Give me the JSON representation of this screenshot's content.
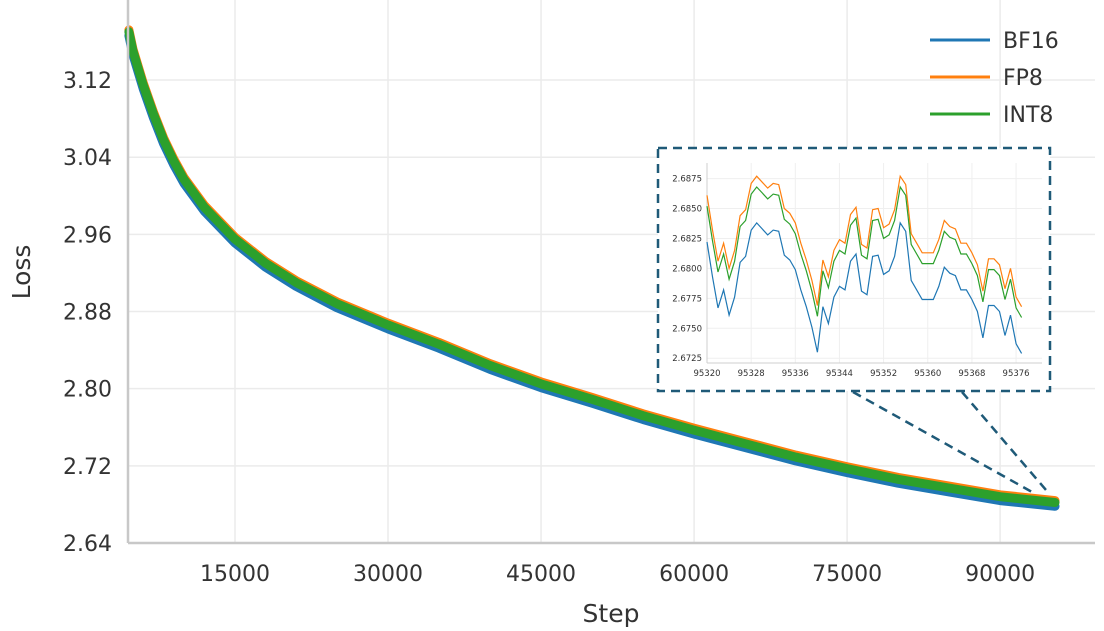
{
  "chart_data": {
    "type": "line",
    "title": "",
    "xlabel": "Step",
    "ylabel": "Loss",
    "xlim": [
      4510,
      99300
    ],
    "ylim": [
      2.64,
      3.203
    ],
    "xticks": [
      15000,
      30000,
      45000,
      60000,
      75000,
      90000
    ],
    "yticks": [
      2.64,
      2.72,
      2.8,
      2.88,
      2.96,
      3.04,
      3.12
    ],
    "ytick_labels": [
      "2.64",
      "2.72",
      "2.80",
      "2.88",
      "2.96",
      "3.04",
      "3.12"
    ],
    "grid": true,
    "legend_placement": "top-right",
    "colors": {
      "BF16": "#1f77b4",
      "FP8": "#ff7f0e",
      "INT8": "#2ca02c",
      "inset_border": "#1f5a78"
    },
    "x": [
      4600,
      5000,
      6000,
      7000,
      8000,
      9000,
      10000,
      12000,
      15000,
      18000,
      21000,
      25000,
      30000,
      35000,
      40000,
      45000,
      50000,
      55000,
      60000,
      65000,
      70000,
      75000,
      80000,
      85000,
      90000,
      95377
    ],
    "series": [
      {
        "name": "BF16",
        "values": [
          3.166,
          3.146,
          3.111,
          3.081,
          3.054,
          3.032,
          3.013,
          2.984,
          2.951,
          2.926,
          2.906,
          2.884,
          2.862,
          2.842,
          2.82,
          2.801,
          2.785,
          2.768,
          2.753,
          2.739,
          2.725,
          2.713,
          2.702,
          2.693,
          2.684,
          2.678
        ]
      },
      {
        "name": "FP8",
        "values": [
          3.172,
          3.152,
          3.117,
          3.087,
          3.06,
          3.038,
          3.019,
          2.99,
          2.957,
          2.932,
          2.912,
          2.89,
          2.868,
          2.848,
          2.826,
          2.807,
          2.791,
          2.774,
          2.759,
          2.745,
          2.731,
          2.719,
          2.708,
          2.699,
          2.69,
          2.684
        ]
      },
      {
        "name": "INT8",
        "values": [
          3.17,
          3.15,
          3.115,
          3.085,
          3.058,
          3.036,
          3.017,
          2.988,
          2.955,
          2.93,
          2.91,
          2.888,
          2.866,
          2.846,
          2.824,
          2.805,
          2.789,
          2.772,
          2.757,
          2.743,
          2.729,
          2.717,
          2.706,
          2.697,
          2.688,
          2.682
        ]
      }
    ],
    "inset": {
      "xlim": [
        95320,
        95380.7
      ],
      "ylim": [
        2.6721,
        2.6888
      ],
      "xticks": [
        95320,
        95328,
        95336,
        95344,
        95352,
        95360,
        95368,
        95376
      ],
      "yticks": [
        2.6725,
        2.675,
        2.6775,
        2.68,
        2.6825,
        2.685,
        2.6875
      ],
      "ytick_labels": [
        "2.6725",
        "2.6750",
        "2.6775",
        "2.6800",
        "2.6825",
        "2.6850",
        "2.6875"
      ],
      "x_start": 95320,
      "series": [
        {
          "name": "BF16",
          "values": [
            2.6822,
            2.6793,
            2.6767,
            2.6782,
            2.6761,
            2.6776,
            2.6805,
            2.681,
            2.6832,
            2.6838,
            2.6833,
            2.6828,
            2.6832,
            2.6831,
            2.6811,
            2.6807,
            2.6799,
            2.6782,
            2.6768,
            2.6751,
            2.673,
            2.6768,
            2.6754,
            2.6776,
            2.6785,
            2.6782,
            2.6806,
            2.6812,
            2.6781,
            2.6778,
            2.681,
            2.6811,
            2.6795,
            2.6798,
            2.681,
            2.6838,
            2.6831,
            2.679,
            2.6782,
            2.6774,
            2.6774,
            2.6774,
            2.6785,
            2.6801,
            2.6796,
            2.6794,
            2.6782,
            2.6782,
            2.6774,
            2.6764,
            2.6742,
            2.6769,
            2.6769,
            2.6764,
            2.6744,
            2.6761,
            2.6737,
            2.6729
          ]
        },
        {
          "name": "FP8",
          "values": [
            2.6861,
            2.6832,
            2.6806,
            2.6821,
            2.68,
            2.6815,
            2.6844,
            2.6849,
            2.6871,
            2.6877,
            2.6872,
            2.6867,
            2.6871,
            2.687,
            2.685,
            2.6846,
            2.6838,
            2.6821,
            2.6807,
            2.679,
            2.6769,
            2.6807,
            2.6793,
            2.6815,
            2.6824,
            2.6821,
            2.6845,
            2.6851,
            2.682,
            2.6817,
            2.6849,
            2.685,
            2.6834,
            2.6837,
            2.6849,
            2.6877,
            2.687,
            2.6829,
            2.6821,
            2.6813,
            2.6813,
            2.6813,
            2.6824,
            2.684,
            2.6835,
            2.6833,
            2.6821,
            2.6821,
            2.6813,
            2.6803,
            2.6781,
            2.6808,
            2.6808,
            2.6803,
            2.6783,
            2.68,
            2.6776,
            2.6768
          ]
        },
        {
          "name": "INT8",
          "values": [
            2.6852,
            2.6823,
            2.6797,
            2.6812,
            2.6791,
            2.6806,
            2.6835,
            2.684,
            2.6862,
            2.6868,
            2.6863,
            2.6858,
            2.6862,
            2.6861,
            2.6841,
            2.6837,
            2.6829,
            2.6812,
            2.6798,
            2.6781,
            2.676,
            2.6798,
            2.6784,
            2.6806,
            2.6815,
            2.6812,
            2.6836,
            2.6842,
            2.6811,
            2.6808,
            2.684,
            2.6841,
            2.6825,
            2.6828,
            2.684,
            2.6868,
            2.6861,
            2.682,
            2.6812,
            2.6804,
            2.6804,
            2.6804,
            2.6815,
            2.6831,
            2.6826,
            2.6824,
            2.6812,
            2.6812,
            2.6804,
            2.6794,
            2.6772,
            2.6799,
            2.6799,
            2.6794,
            2.6774,
            2.6791,
            2.6767,
            2.6759
          ]
        }
      ]
    }
  }
}
